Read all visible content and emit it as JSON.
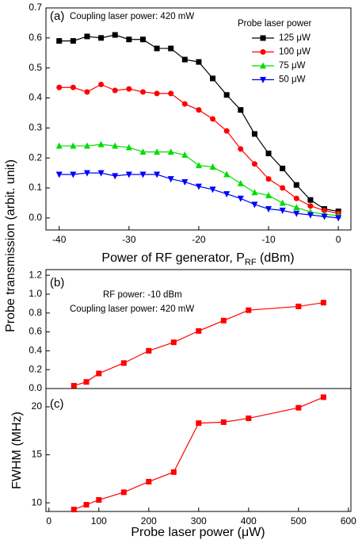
{
  "chart_data": [
    {
      "type": "line",
      "panel_label": "(a)",
      "annotation": "Coupling laser power: 420 mW",
      "legend_title": "Probe laser power",
      "ylabel": "Probe transmission (arbit. unit)",
      "xlabel": {
        "text": "Power of RF generator, P",
        "sub": "RF",
        "tail": " (dBm)"
      },
      "x": [
        -40,
        -38,
        -36,
        -34,
        -32,
        -30,
        -28,
        -26,
        -24,
        -22,
        -20,
        -18,
        -16,
        -14,
        -12,
        -10,
        -8,
        -6,
        -4,
        -2,
        0
      ],
      "series": [
        {
          "name": "125 μW",
          "color": "#000000",
          "marker": "square",
          "values": [
            0.59,
            0.59,
            0.605,
            0.6,
            0.61,
            0.595,
            0.595,
            0.565,
            0.565,
            0.528,
            0.52,
            0.465,
            0.41,
            0.36,
            0.28,
            0.215,
            0.165,
            0.11,
            0.06,
            0.03,
            0.022
          ]
        },
        {
          "name": "100 μW",
          "color": "#ff0000",
          "marker": "circle",
          "values": [
            0.435,
            0.435,
            0.42,
            0.445,
            0.425,
            0.43,
            0.42,
            0.415,
            0.415,
            0.38,
            0.36,
            0.33,
            0.29,
            0.23,
            0.18,
            0.13,
            0.1,
            0.065,
            0.04,
            0.025,
            0.015
          ]
        },
        {
          "name": "75 μW",
          "color": "#00dd00",
          "marker": "triangle-up",
          "values": [
            0.24,
            0.24,
            0.24,
            0.245,
            0.24,
            0.235,
            0.22,
            0.22,
            0.22,
            0.21,
            0.175,
            0.17,
            0.145,
            0.115,
            0.085,
            0.075,
            0.05,
            0.035,
            0.02,
            0.012,
            0.008
          ]
        },
        {
          "name": "50 μW",
          "color": "#0000ff",
          "marker": "triangle-down",
          "values": [
            0.145,
            0.145,
            0.15,
            0.15,
            0.14,
            0.145,
            0.145,
            0.145,
            0.13,
            0.12,
            0.105,
            0.095,
            0.08,
            0.065,
            0.045,
            0.03,
            0.025,
            0.015,
            0.01,
            0.005,
            0
          ]
        }
      ],
      "xlim": [
        -41.9,
        1.8
      ],
      "xticks": [
        -40,
        -30,
        -20,
        -10,
        0
      ],
      "ylim": [
        -0.04,
        0.7
      ],
      "yticks": [
        {
          "value": 0,
          "label": "0.0"
        },
        0.1,
        0.2,
        0.3,
        0.4,
        0.5,
        0.6,
        0.7
      ]
    },
    {
      "type": "line",
      "panel_label": "(b)",
      "annotations": [
        "RF power: -10 dBm",
        "Coupling laser power: 420 mW"
      ],
      "x": [
        50,
        75,
        100,
        150,
        200,
        250,
        300,
        350,
        400,
        500,
        550
      ],
      "values": [
        0.03,
        0.07,
        0.16,
        0.27,
        0.4,
        0.49,
        0.61,
        0.72,
        0.83,
        0.87,
        0.91
      ],
      "color": "#ff0000",
      "marker": "square",
      "xlim": [
        -6,
        605
      ],
      "ylim": [
        0,
        1.26
      ],
      "yticks": [
        {
          "value": 0,
          "label": "0.0"
        },
        0.2,
        0.4,
        0.6,
        0.8,
        {
          "value": 1,
          "label": "1.0"
        },
        1.2
      ]
    },
    {
      "type": "line",
      "panel_label": "(c)",
      "ylabel": "FWHM (MHz)",
      "xlabel": "Probe laser power (μW)",
      "x": [
        50,
        75,
        100,
        150,
        200,
        250,
        300,
        350,
        400,
        500,
        550
      ],
      "values": [
        9.3,
        9.8,
        10.3,
        11.1,
        12.2,
        13.2,
        18.3,
        18.4,
        18.8,
        19.9,
        21.0
      ],
      "color": "#ff0000",
      "marker": "square",
      "xlim": [
        -6,
        605
      ],
      "xticks": [
        0,
        100,
        200,
        300,
        400,
        500,
        600
      ],
      "ylim": [
        9.1,
        21.9
      ],
      "yticks": [
        10,
        15,
        20
      ]
    }
  ]
}
